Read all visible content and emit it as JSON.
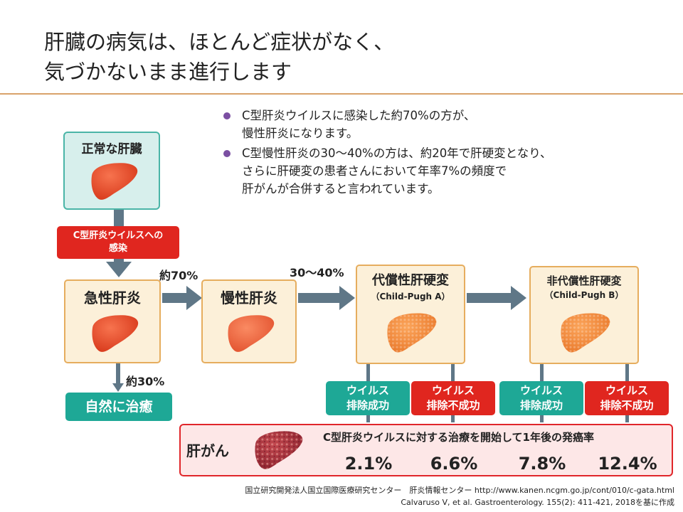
{
  "title": {
    "line1": "肝臓の病気は、ほとんど症状がなく、",
    "line2": "気づかないまま進行します"
  },
  "bullets": [
    {
      "line1": "C型肝炎ウイルスに感染した約70%の方が、",
      "line2": "慢性肝炎になります。",
      "line3": ""
    },
    {
      "line1": "C型慢性肝炎の30～40%の方は、約20年で肝硬変となり、",
      "line2": "さらに肝硬変の患者さんにおいて年率7%の頻度で",
      "line3": "肝がんが合併すると言われています。"
    }
  ],
  "stages": {
    "normal": "正常な肝臓",
    "infection": {
      "line1": "C型肝炎ウイルスへの",
      "line2": "感染"
    },
    "acute": "急性肝炎",
    "chronic": "慢性肝炎",
    "compensated": {
      "label": "代償性肝硬変",
      "sub": "（Child-Pugh A）"
    },
    "decompensated": {
      "label": "非代償性肝硬変",
      "sub": "（Child-Pugh B）"
    },
    "natural_cure": "自然に治癒"
  },
  "percents": {
    "to_chronic": "約70%",
    "to_cure": "約30%",
    "to_cirrhosis": "30～40%"
  },
  "outcomes": [
    {
      "line1": "ウイルス",
      "line2": "排除成功",
      "kind": "success"
    },
    {
      "line1": "ウイルス",
      "line2": "排除不成功",
      "kind": "failure"
    },
    {
      "line1": "ウイルス",
      "line2": "排除成功",
      "kind": "success"
    },
    {
      "line1": "ウイルス",
      "line2": "排除不成功",
      "kind": "failure"
    }
  ],
  "cancer": {
    "label": "肝がん",
    "heading": "C型肝炎ウイルスに対する治療を開始して1年後の発癌率",
    "rates": [
      "2.1%",
      "6.6%",
      "7.8%",
      "12.4%"
    ]
  },
  "footer": {
    "line1": "国立研究開発法人国立国際医療研究センター　肝炎情報センター http://www.kanen.ncgm.go.jp/cont/010/c-gata.html",
    "line2": "Calvaruso V, et al. Gastroenterology. 155(2): 411-421, 2018を基に作成"
  },
  "colors": {
    "accent_rule": "#d9a26a",
    "bullet": "#7b4fa2",
    "teal": "#1ea896",
    "red": "#e0261f",
    "arrow": "#5f7787"
  },
  "icons": {
    "liver_healthy": "liver-icon",
    "liver_cirrhotic": "cirrhotic-liver-icon",
    "liver_cancer": "cancer-liver-icon"
  }
}
